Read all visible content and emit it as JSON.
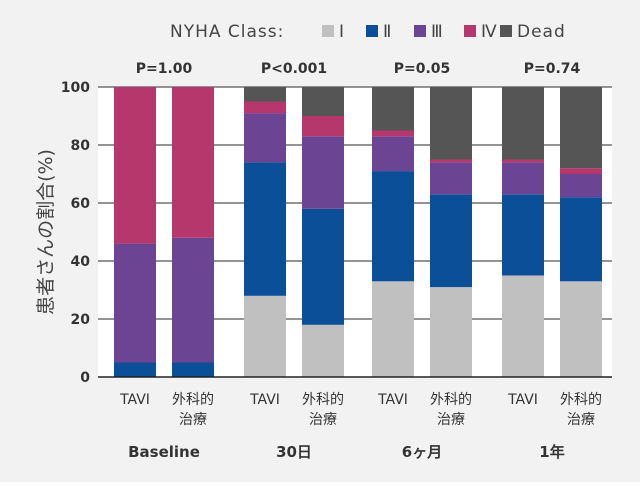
{
  "chart_data": {
    "type": "bar",
    "stacked": true,
    "ylabel": "患者さんの割合(%)",
    "ylim": [
      0,
      100
    ],
    "yticks": [
      "0",
      "20",
      "40",
      "60",
      "80",
      "100"
    ],
    "legend": {
      "title": "NYHA Class:",
      "position": "top-right",
      "items": [
        {
          "name": "Ⅰ",
          "color": "#c0c0c0"
        },
        {
          "name": "Ⅱ",
          "color": "#0c4f99"
        },
        {
          "name": "Ⅲ",
          "color": "#6c4494"
        },
        {
          "name": "Ⅳ",
          "color": "#b5376b"
        },
        {
          "name": "Dead",
          "color": "#555555"
        }
      ]
    },
    "groups": [
      {
        "label": "Baseline",
        "pvalue": "P=1.00",
        "categories": [
          [
            "TAVI"
          ],
          [
            "外科的",
            "治療"
          ]
        ]
      },
      {
        "label": "30日",
        "pvalue": "P<0.001",
        "categories": [
          [
            "TAVI"
          ],
          [
            "外科的",
            "治療"
          ]
        ]
      },
      {
        "label": "6ヶ月",
        "pvalue": "P=0.05",
        "categories": [
          [
            "TAVI"
          ],
          [
            "外科的",
            "治療"
          ]
        ]
      },
      {
        "label": "1年",
        "pvalue": "P=0.74",
        "categories": [
          [
            "TAVI"
          ],
          [
            "外科的",
            "治療"
          ]
        ]
      }
    ],
    "series": [
      {
        "name": "Ⅰ",
        "values": [
          0,
          0,
          28,
          18,
          33,
          31,
          35,
          33
        ]
      },
      {
        "name": "Ⅱ",
        "values": [
          5,
          5,
          46,
          40,
          38,
          32,
          28,
          29
        ]
      },
      {
        "name": "Ⅲ",
        "values": [
          41,
          43,
          17,
          25,
          12,
          11,
          11,
          8
        ]
      },
      {
        "name": "Ⅳ",
        "values": [
          54,
          52,
          4,
          7,
          2,
          1,
          1,
          2
        ]
      },
      {
        "name": "Dead",
        "values": [
          0,
          0,
          5,
          10,
          15,
          25,
          25,
          28
        ]
      }
    ]
  }
}
